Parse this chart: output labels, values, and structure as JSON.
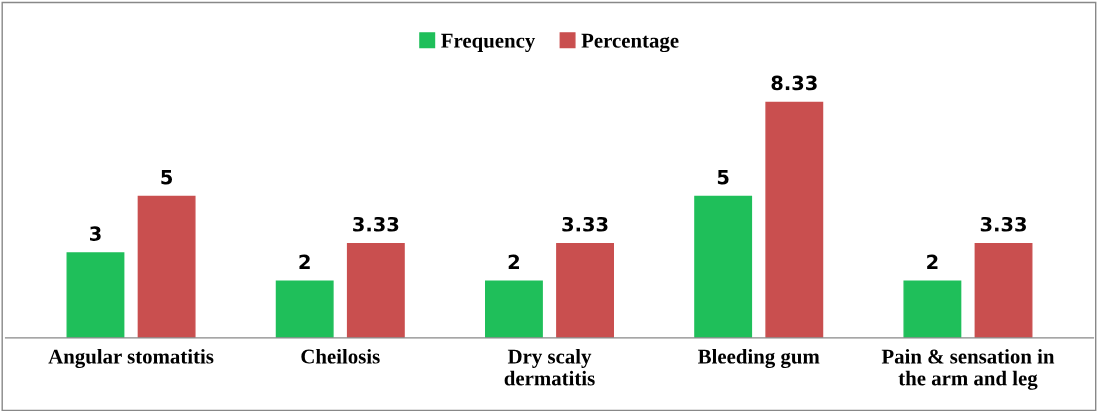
{
  "chart_data": {
    "type": "bar",
    "categories": [
      "Angular stomatitis",
      "Cheilosis",
      "Dry scaly\ndermatitis",
      "Bleeding gum",
      "Pain & sensation in\nthe arm and leg"
    ],
    "series": [
      {
        "name": "Frequency",
        "color": "#1fbf5a",
        "values": [
          3,
          2,
          2,
          5,
          2
        ]
      },
      {
        "name": "Percentage",
        "color": "#c94f4f",
        "values": [
          5,
          3.33,
          3.33,
          8.33,
          3.33
        ]
      }
    ],
    "tick_labels": "x",
    "data_labels": true,
    "grid": false,
    "legend": "top"
  }
}
